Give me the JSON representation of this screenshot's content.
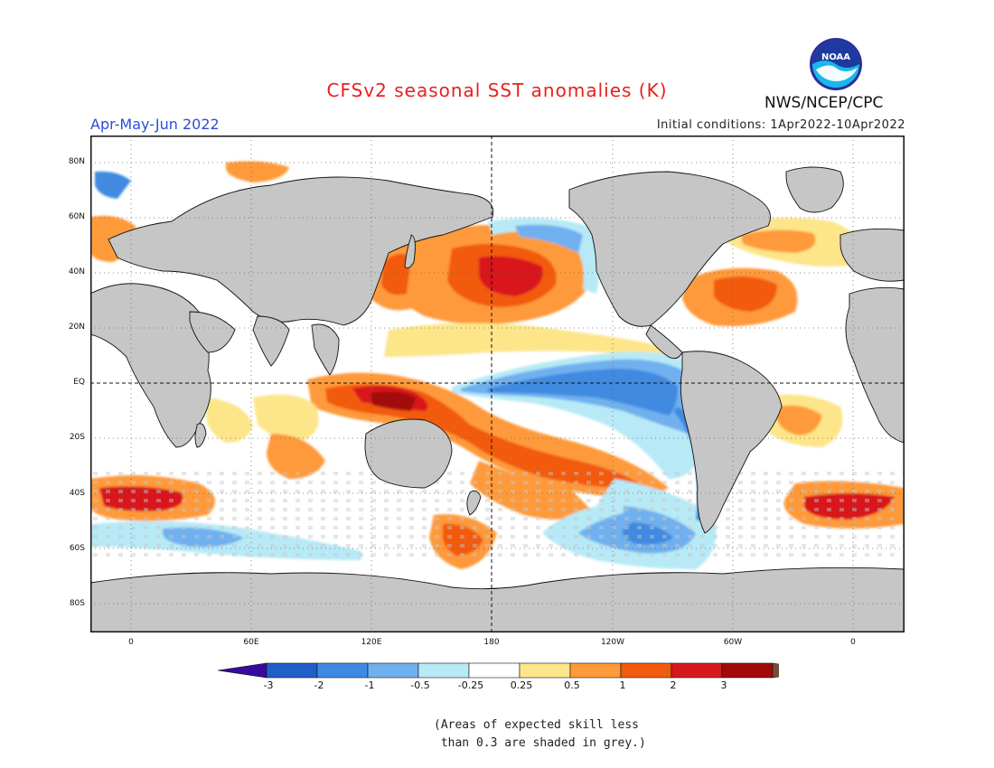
{
  "title": "CFSv2 seasonal SST anomalies (K)",
  "period": "Apr-May-Jun 2022",
  "initial_conditions": "Initial conditions: 1Apr2022-10Apr2022",
  "agency": "NWS/NCEP/CPC",
  "logo_text": "NOAA",
  "latitude_labels": [
    "80N",
    "60N",
    "40N",
    "20N",
    "EQ",
    "20S",
    "40S",
    "60S",
    "80S"
  ],
  "longitude_labels": [
    "0",
    "60E",
    "120E",
    "180",
    "120W",
    "60W",
    "0"
  ],
  "colorbar": {
    "tick_labels": [
      "-3",
      "-2",
      "-1",
      "-0.5",
      "-0.25",
      "0.25",
      "0.5",
      "1",
      "2",
      "3"
    ],
    "colors": [
      "#3a0a9e",
      "#1f5fc8",
      "#3f8ae0",
      "#6fb0ef",
      "#b7eaf6",
      "#ffffff",
      "#fde58a",
      "#fe9a3a",
      "#f25a0e",
      "#d8191b",
      "#a10a0a",
      "#7a4a3a"
    ]
  },
  "land_color": "#c6c6c6",
  "note": "(Areas of expected skill less\n than 0.3 are shaded in grey.)"
}
